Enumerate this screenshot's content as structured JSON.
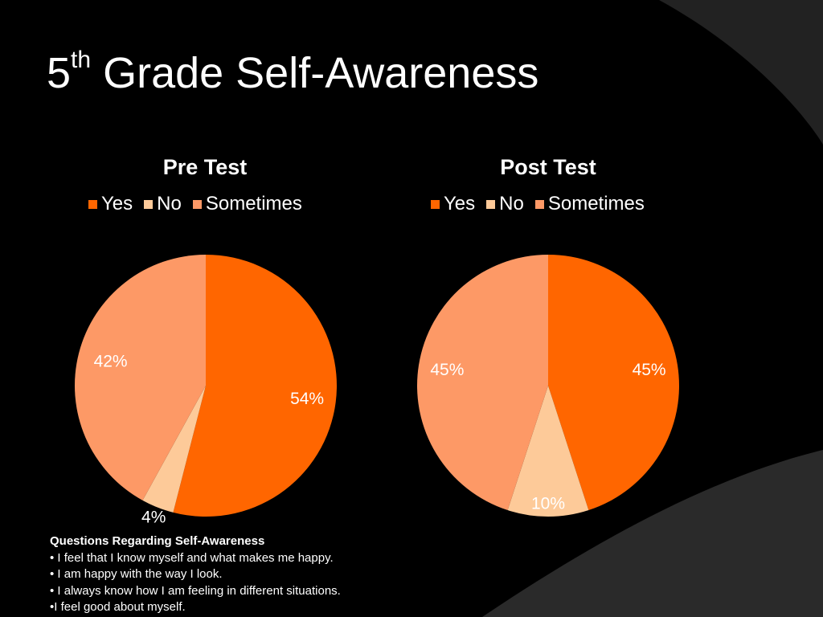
{
  "slide": {
    "title_main": "5",
    "title_sup": "th",
    "title_rest": " Grade Self-Awareness"
  },
  "colors": {
    "yes": "#ff6600",
    "no": "#fdca99",
    "sometimes": "#fd9966",
    "background": "#000000",
    "background_band": "#2b2b2b"
  },
  "chart_data": [
    {
      "type": "pie",
      "title": "Pre Test",
      "categories": [
        "Yes",
        "No",
        "Sometimes"
      ],
      "values": [
        54,
        4,
        42
      ],
      "labels": [
        "54%",
        "4%",
        "42%"
      ],
      "legend_position": "top"
    },
    {
      "type": "pie",
      "title": "Post Test",
      "categories": [
        "Yes",
        "No",
        "Sometimes"
      ],
      "values": [
        45,
        10,
        45
      ],
      "labels": [
        "45%",
        "10%",
        "45%"
      ],
      "legend_position": "top"
    }
  ],
  "questions": {
    "heading": "Questions Regarding Self-Awareness",
    "items": [
      "• I feel that I know myself and what makes me happy.",
      "• I am happy with the way I look.",
      "• I always know how I am feeling in different situations.",
      "•I feel good about myself."
    ]
  }
}
